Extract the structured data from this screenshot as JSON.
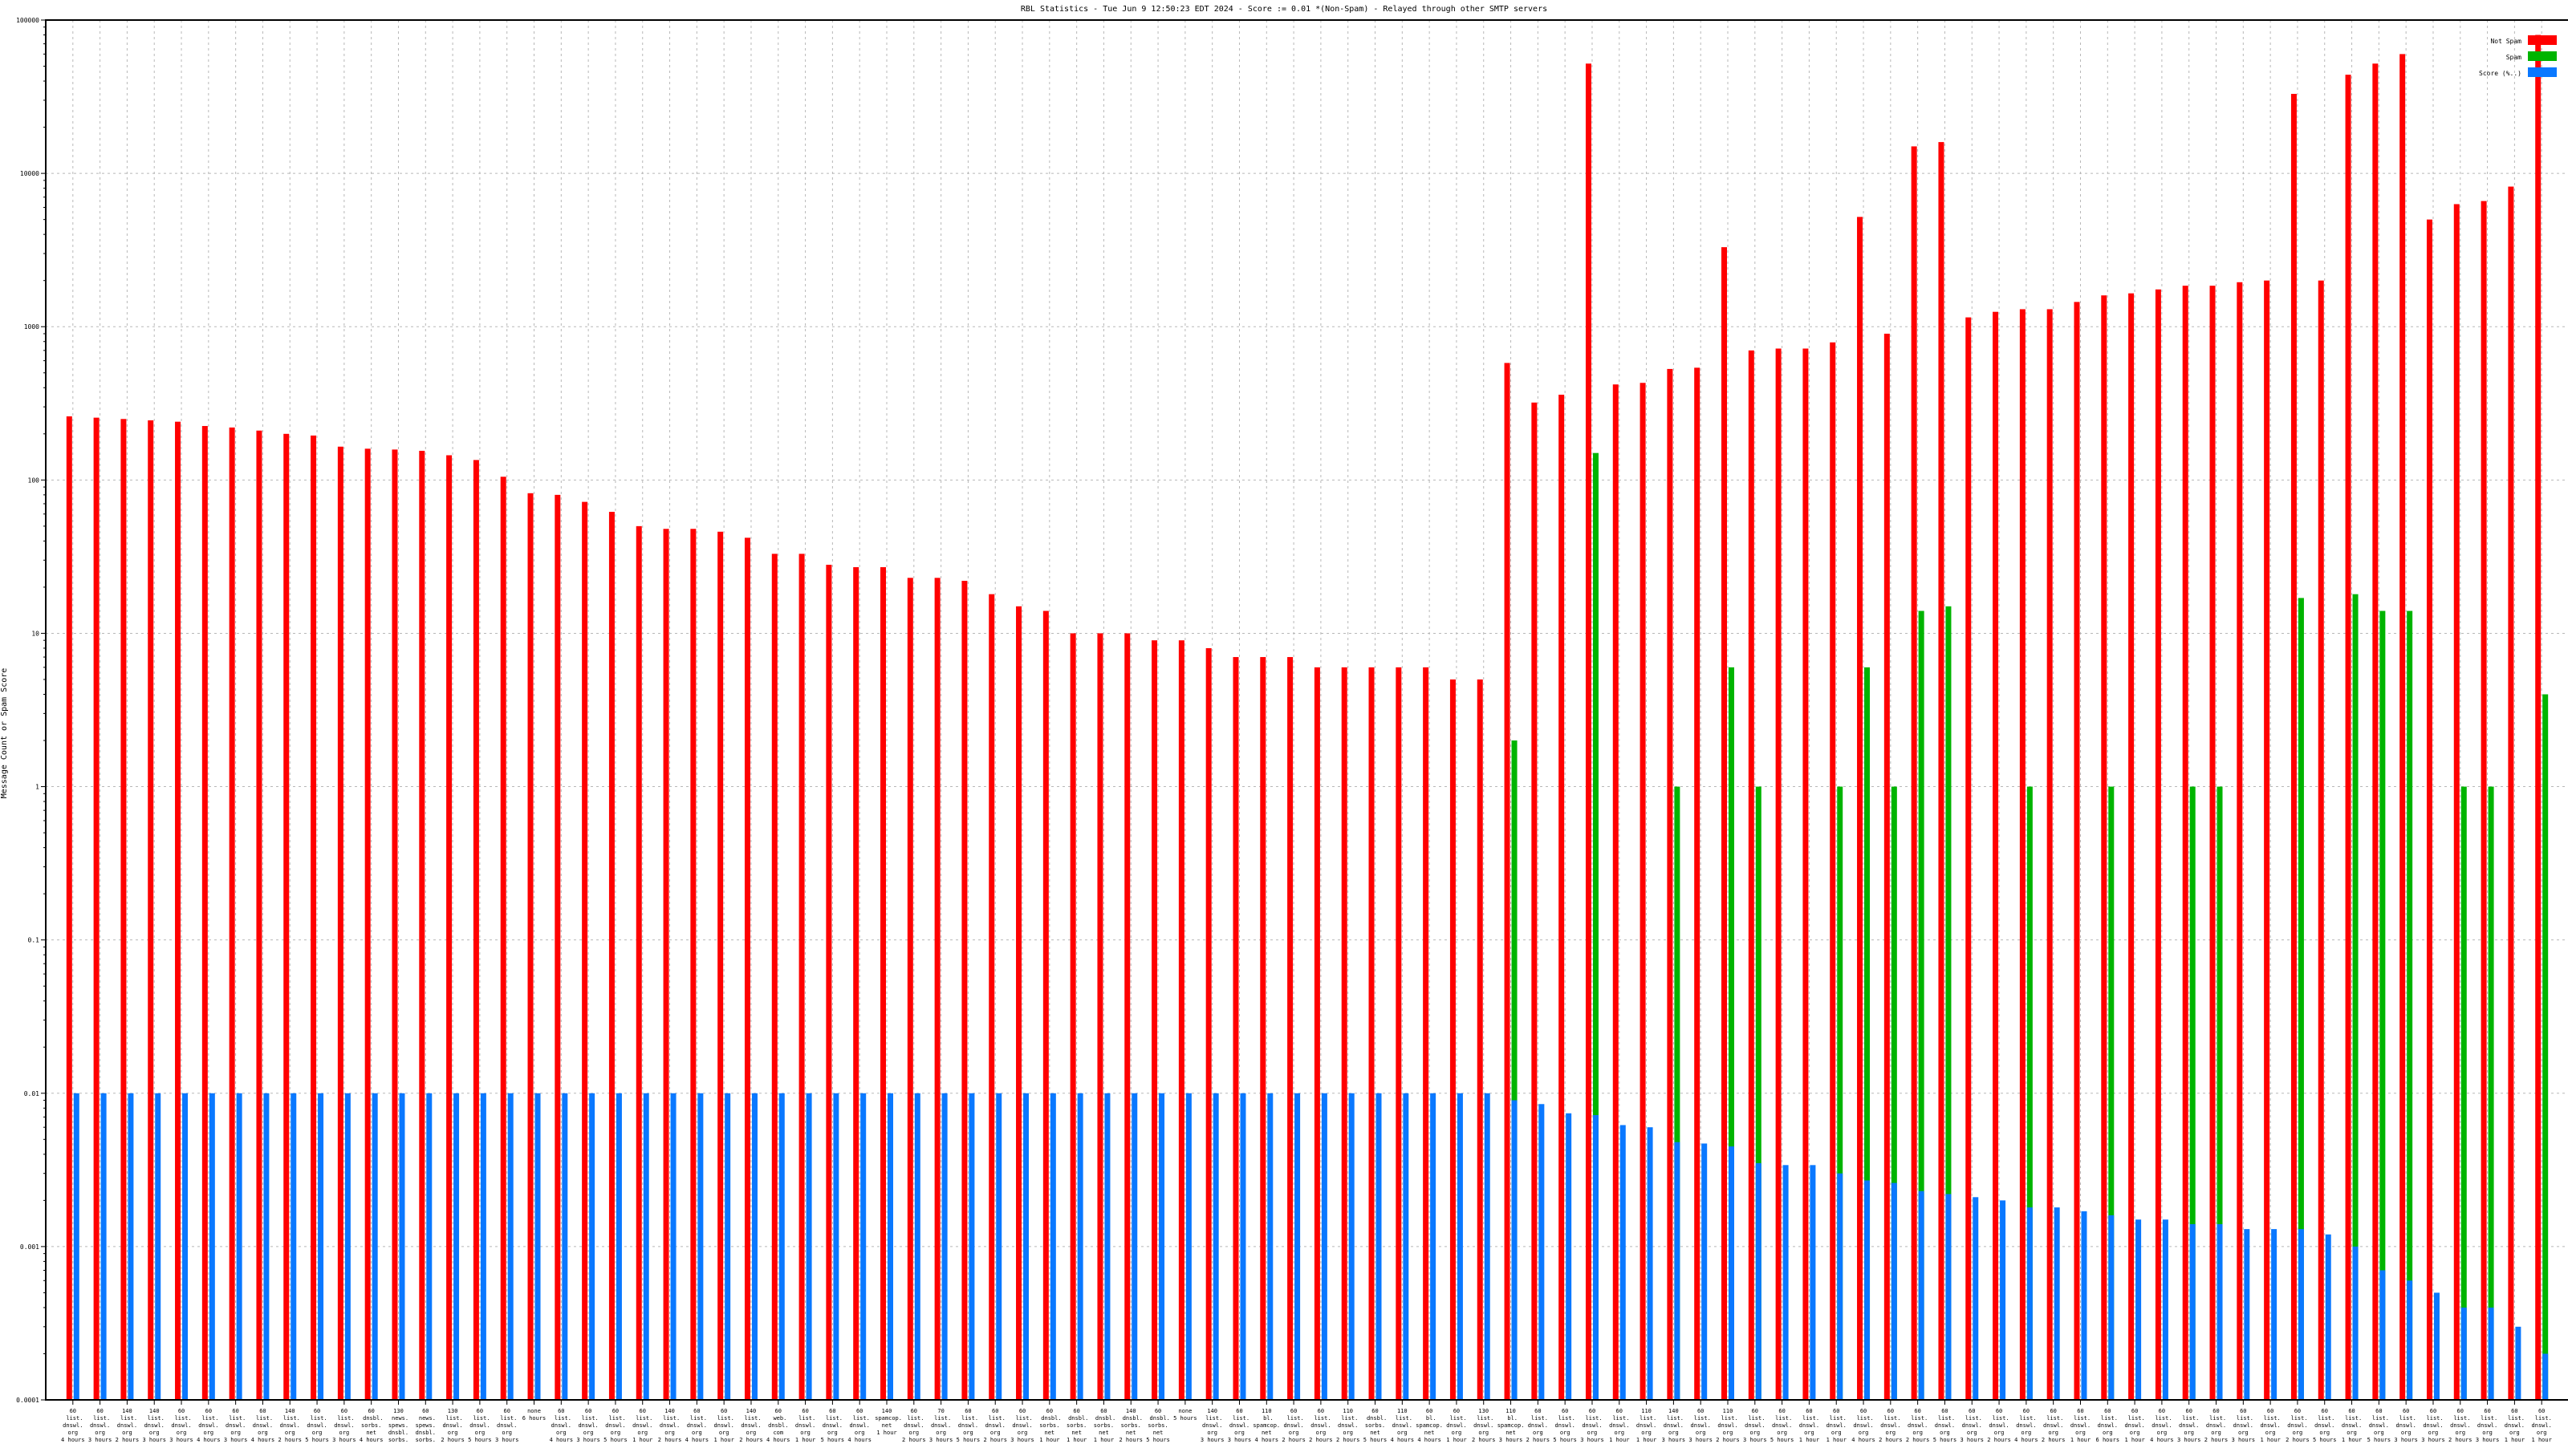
{
  "page": {
    "title": "RBL Statistics - Tue Jun  9 12:50:23 EDT 2024 - Score := 0.01 *(Non-Spam) - Relayed through other SMTP servers"
  },
  "chart_data": {
    "type": "bar",
    "title": "RBL Statistics - Tue Jun  9 12:50:23 EDT 2024 - Score := 0.01 *(Non-Spam) - Relayed through other SMTP servers",
    "xlabel": "",
    "ylabel": "Message Count or Spam Score",
    "yscale": "log",
    "ylim": [
      0.0001,
      100000
    ],
    "yticks": [
      "0.0001",
      "0.001",
      "0.01",
      "0.1",
      "1",
      "10",
      "100",
      "1000",
      "10000",
      "100000"
    ],
    "grid": true,
    "legend_position": "top-right",
    "colors": {
      "non_spam": "#ff0000",
      "spam": "#00b400",
      "score": "#0a78ff"
    },
    "categories": [
      "60\n list.\ndnswl.\norg\n4 hours",
      "60\n list.\ndnswl.\norg\n3 hours",
      "140\n list.\ndnswl.\norg\n2 hours",
      "140\n list.\ndnswl.\norg\n3 hours",
      "60\n list.\ndnswl.\norg\n3 hours",
      "60\n list.\ndnswl.\norg\n4 hours",
      "60\n list.\ndnswl.\norg\n3 hours",
      "60\n list.\ndnswl.\norg\n4 hours",
      "140\n list.\ndnswl.\norg\n2 hours",
      "60\n list.\ndnswl.\norg\n5 hours",
      "60\n list.\ndnswl.\norg\n3 hours",
      "60\n dnsbl.\nsorbs.\nnet\n4 hours",
      "130\n news.\nspews.\ndnsbl.\nsorbs.\nnet\n2 hours",
      "60\n news.\nspews.\ndnsbl.\nsorbs.\nnet\n4 hours",
      "130\n list.\ndnswl.\norg\n2 hours",
      "60\n list.\ndnswl.\norg\n5 hours",
      "60\n list.\ndnswl.\norg\n3 hours",
      "none\n6 hours",
      "60\n list.\ndnswl.\norg\n4 hours",
      "60\n list.\ndnswl.\norg\n3 hours",
      "60\n list.\ndnswl.\norg\n5 hours",
      "60\n list.\ndnswl.\norg\n1 hour",
      "140\n list.\ndnswl.\norg\n2 hours",
      "60\n list.\ndnswl.\norg\n4 hours",
      "60\n list.\ndnswl.\norg\n1 hour",
      "140\n list.\ndnswl.\norg\n2 hours",
      "60\n web.\ndnsbl.\ncom\n4 hours",
      "60\n list.\ndnswl.\norg\n1 hour",
      "60\n list.\ndnswl.\norg\n5 hours",
      "60\n list.\ndnswl.\norg\n4 hours",
      "140\n spamcop.\nnet\n1 hour",
      "60\n list.\ndnswl.\norg\n2 hours",
      "70\n list.\ndnswl.\norg\n3 hours",
      "60\n list.\ndnswl.\norg\n5 hours",
      "60\n list.\ndnswl.\norg\n2 hours",
      "60\n list.\ndnswl.\norg\n3 hours",
      "60\n dnsbl.\nsorbs.\nnet\n1 hour",
      "60\n dnsbl.\nsorbs.\nnet\n1 hour",
      "60\n dnsbl.\nsorbs.\nnet\n1 hour",
      "140\n dnsbl.\nsorbs.\nnet\n2 hours",
      "60\n dnsbl.\nsorbs.\nnet\n5 hours",
      "none\n5 hours",
      "140\n list.\ndnswl.\norg\n3 hours",
      "60\n list.\ndnswl.\norg\n3 hours",
      "110\n bl.\nspamcop.\nnet\n4 hours",
      "60\n list.\ndnswl.\norg\n2 hours",
      "60\n list.\ndnswl.\norg\n2 hours",
      "110\n list.\ndnswl.\norg\n2 hours",
      "60\n dnsbl.\nsorbs.\nnet\n5 hours",
      "110\n list.\ndnswl.\norg\n4 hours",
      "60\n bl.\nspamcop.\nnet\n4 hours",
      "60\n list.\ndnswl.\norg\n1 hour",
      "130\n list.\ndnswl.\norg\n2 hours",
      "110\n bl.\nspamcop.\nnet\n3 hours",
      "60\n list.\ndnswl.\norg\n2 hours",
      "60\n list.\ndnswl.\norg\n5 hours",
      "60\n list.\ndnswl.\norg\n3 hours",
      "60\n list.\ndnswl.\norg\n1 hour",
      "110\n list.\ndnswl.\norg\n1 hour",
      "140\n list.\ndnswl.\norg\n3 hours",
      "60\n list.\ndnswl.\norg\n3 hours",
      "110\n list.\ndnswl.\norg\n2 hours",
      "60\n list.\ndnswl.\norg\n3 hours",
      "60\n list.\ndnswl.\norg\n5 hours",
      "60\n list.\ndnswl.\norg\n1 hour",
      "60\n list.\ndnswl.\norg\n1 hour",
      "60\n list.\ndnswl.\norg\n4 hours",
      "60\n list.\ndnswl.\norg\n2 hours",
      "60\n list.\ndnswl.\norg\n2 hours",
      "60\n list.\ndnswl.\norg\n5 hours",
      "60\n list.\ndnswl.\norg\n3 hours",
      "60\n list.\ndnswl.\norg\n2 hours",
      "60\n list.\ndnswl.\norg\n4 hours",
      "60\n list.\ndnswl.\norg\n2 hours",
      "60\n list.\ndnswl.\norg\n1 hour",
      "60\n list.\ndnswl.\norg\n6 hours",
      "60\n list.\ndnswl.\norg\n1 hour",
      "60\n list.\ndnswl.\norg\n4 hours",
      "60\n list.\ndnswl.\norg\n3 hours",
      "60\n list.\ndnswl.\norg\n2 hours",
      "60\n list.\ndnswl.\norg\n3 hours",
      "60\n list.\ndnswl.\norg\n1 hour",
      "60\n list.\ndnswl.\norg\n2 hours",
      "60\n list.\ndnswl.\norg\n5 hours",
      "60\n list.\ndnswl.\norg\n1 hour",
      "60\n list.\ndnswl.\norg\n5 hours",
      "60\n list.\ndnswl.\norg\n3 hours",
      "60\n list.\ndnswl.\norg\n3 hours",
      "60\n list.\ndnswl.\norg\n2 hours",
      "60\n list.\ndnswl.\norg\n3 hours",
      "60\n list.\ndnswl.\norg\n1 hour",
      "60\n list.\ndnswl.\norg\n1 hour"
    ],
    "series": [
      {
        "name": "Not Spam",
        "values": [
          260,
          255,
          250,
          245,
          240,
          225,
          220,
          210,
          200,
          195,
          165,
          160,
          158,
          155,
          145,
          135,
          105,
          82,
          80,
          72,
          62,
          50,
          48,
          48,
          46,
          42,
          33,
          33,
          28,
          27,
          27,
          23,
          23,
          22,
          18,
          15,
          14,
          10,
          10,
          10,
          9,
          9,
          8,
          7,
          7,
          7,
          6,
          6,
          6,
          6,
          6,
          5,
          5,
          580,
          320,
          360,
          52000,
          420,
          430,
          530,
          540,
          3300,
          700,
          720,
          720,
          790,
          5200,
          900,
          15000,
          16000,
          1150,
          1250,
          1300,
          1300,
          1450,
          1600,
          1650,
          1750,
          1850,
          1850,
          1950,
          2000,
          33000,
          2000,
          44000,
          52000,
          60000,
          5000,
          6300,
          6600,
          8200,
          80000
        ]
      },
      {
        "name": "Spam",
        "values": [
          null,
          null,
          null,
          null,
          null,
          null,
          null,
          null,
          null,
          null,
          null,
          null,
          null,
          null,
          null,
          null,
          null,
          null,
          null,
          null,
          null,
          null,
          null,
          null,
          null,
          null,
          null,
          null,
          null,
          null,
          null,
          null,
          null,
          null,
          null,
          null,
          null,
          null,
          null,
          null,
          null,
          null,
          null,
          null,
          null,
          null,
          null,
          null,
          null,
          null,
          null,
          null,
          null,
          2,
          null,
          null,
          150,
          null,
          null,
          1,
          null,
          6,
          1,
          null,
          null,
          1,
          6,
          1,
          14,
          15,
          null,
          null,
          1,
          null,
          null,
          1,
          null,
          null,
          1,
          1,
          null,
          null,
          17,
          null,
          18,
          14,
          14,
          null,
          1,
          1,
          null,
          4
        ]
      },
      {
        "name": "Score (%..)",
        "values": [
          0.01,
          0.01,
          0.01,
          0.01,
          0.01,
          0.01,
          0.01,
          0.01,
          0.01,
          0.01,
          0.01,
          0.01,
          0.01,
          0.01,
          0.01,
          0.01,
          0.01,
          0.01,
          0.01,
          0.01,
          0.01,
          0.01,
          0.01,
          0.01,
          0.01,
          0.01,
          0.01,
          0.01,
          0.01,
          0.01,
          0.01,
          0.01,
          0.01,
          0.01,
          0.01,
          0.01,
          0.01,
          0.01,
          0.01,
          0.01,
          0.01,
          0.01,
          0.01,
          0.01,
          0.01,
          0.01,
          0.01,
          0.01,
          0.01,
          0.01,
          0.01,
          0.01,
          0.01,
          0.009,
          0.0085,
          0.0074,
          0.0072,
          0.0062,
          0.006,
          0.0048,
          0.0047,
          0.0045,
          0.0035,
          0.0034,
          0.0034,
          0.003,
          0.0027,
          0.0026,
          0.0023,
          0.0022,
          0.0021,
          0.002,
          0.0018,
          0.0018,
          0.0017,
          0.0016,
          0.0015,
          0.0015,
          0.0014,
          0.0014,
          0.0013,
          0.0013,
          0.0013,
          0.0012,
          0.001,
          0.0007,
          0.0006,
          0.0005,
          0.0004,
          0.0004,
          0.0003,
          0.0002
        ]
      }
    ]
  }
}
